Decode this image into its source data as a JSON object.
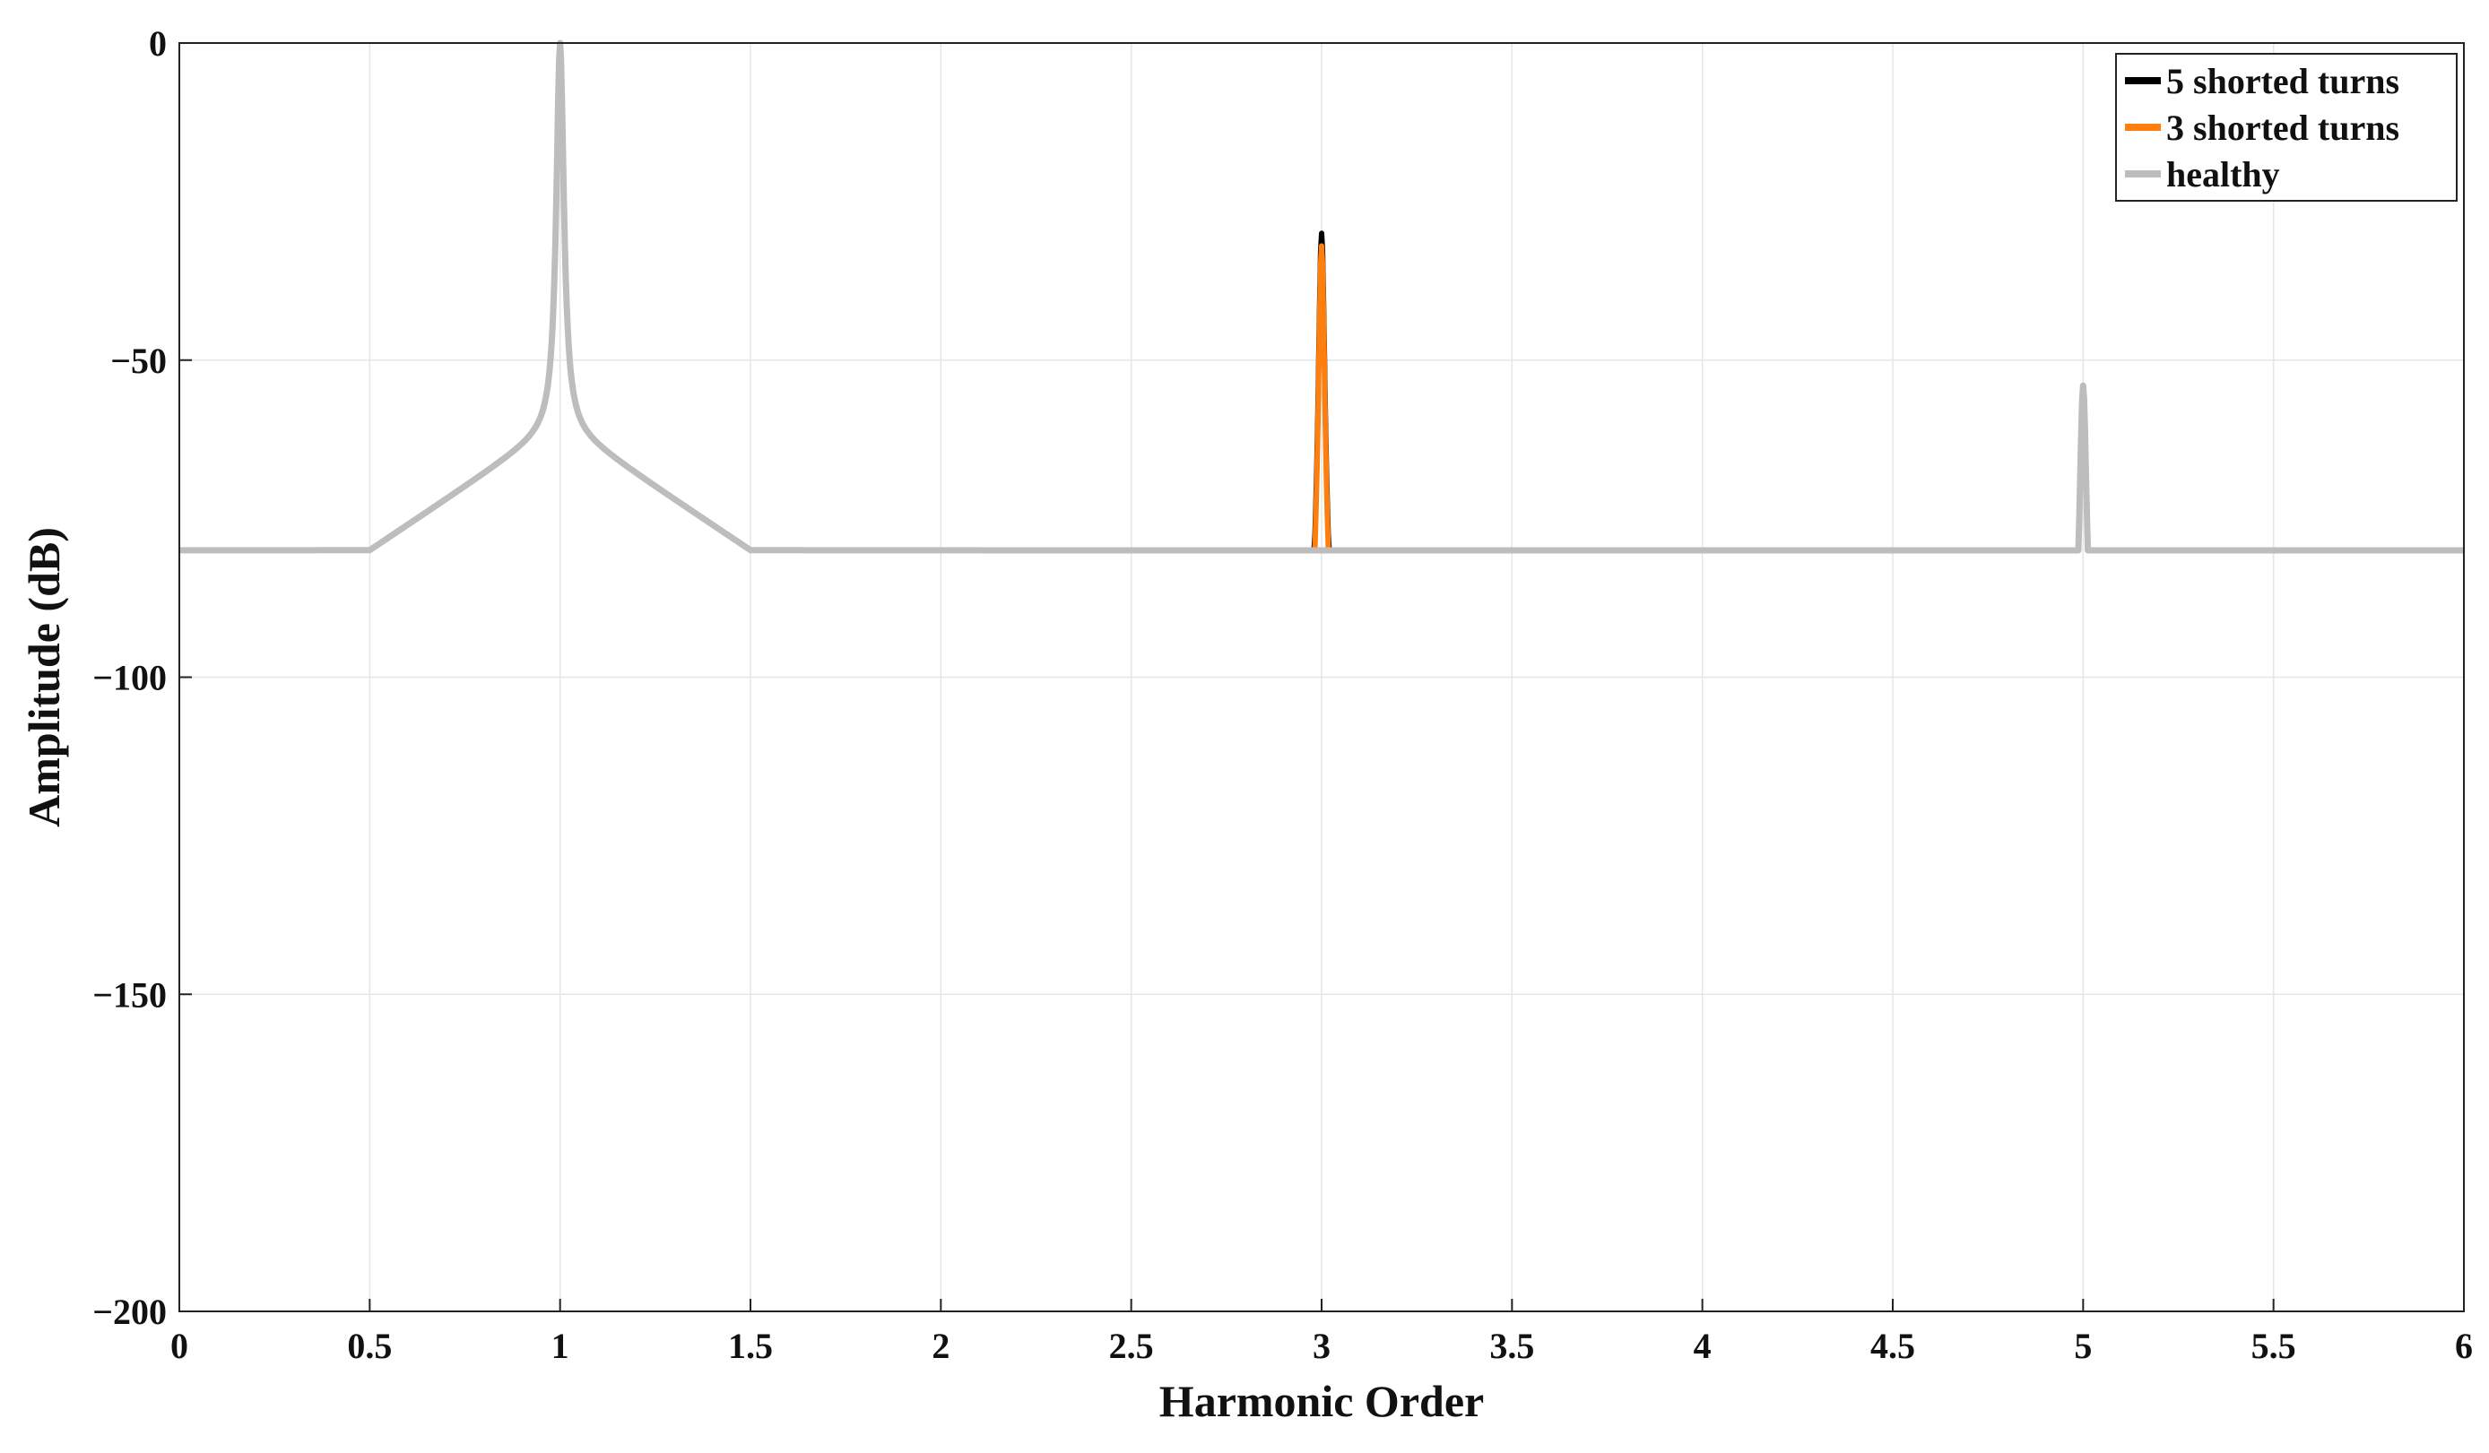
{
  "chart_data": {
    "type": "line",
    "title": "",
    "xlabel": "Harmonic Order",
    "ylabel": "Amplitude (dB)",
    "xlim": [
      0,
      6
    ],
    "ylim": [
      -200,
      0
    ],
    "xticks": [
      0,
      0.5,
      1,
      1.5,
      2,
      2.5,
      3,
      3.5,
      4,
      4.5,
      5,
      5.5,
      6
    ],
    "xtick_labels": [
      "0",
      "0.5",
      "1",
      "1.5",
      "2",
      "2.5",
      "3",
      "3.5",
      "4",
      "4.5",
      "5",
      "5.5",
      "6"
    ],
    "yticks": [
      0,
      -50,
      -100,
      -150,
      -200
    ],
    "ytick_labels": [
      "0",
      "−50",
      "−100",
      "−150",
      "−200"
    ],
    "grid": true,
    "legend": "top-right",
    "peaks_db": {
      "h1": 0,
      "h3_healthy": -97,
      "h5": -54
    },
    "series": [
      {
        "name": "5 shorted turns",
        "color": "#000000",
        "h3_peak": -30,
        "offset": -2.5,
        "phase": 0.0
      },
      {
        "name": "3 shorted turns",
        "color": "#ff7f0e",
        "h3_peak": -32,
        "offset": -1.2,
        "phase": 0.31
      },
      {
        "name": "healthy",
        "color": "#bdbdbd",
        "h3_peak": -97,
        "offset": 0.0,
        "phase": 0.77
      }
    ]
  }
}
